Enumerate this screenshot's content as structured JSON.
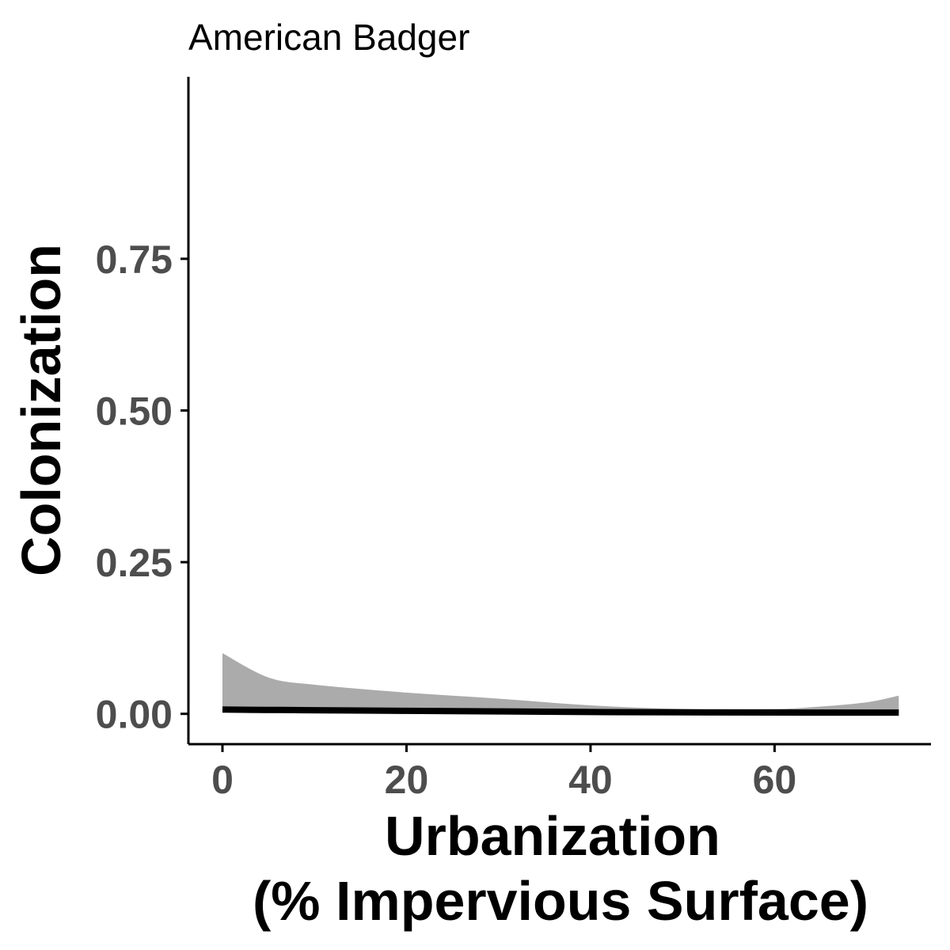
{
  "chart_data": {
    "type": "area",
    "title": "American Badger",
    "xlabel": [
      "Urbanization",
      "(% Impervious Surface)"
    ],
    "ylabel": "Colonization",
    "xlim": [
      -3.7,
      77
    ],
    "ylim": [
      -0.05,
      1.05
    ],
    "x_ticks": [
      0,
      20,
      40,
      60
    ],
    "x_tick_labels": [
      "0",
      "20",
      "40",
      "60"
    ],
    "y_ticks": [
      0,
      0.25,
      0.5,
      0.75
    ],
    "y_tick_labels": [
      "0.00",
      "0.25",
      "0.50",
      "0.75"
    ],
    "grid": false,
    "legend": "none",
    "colors": {
      "ribbon": "#ababab",
      "line": "#000000",
      "axis": "#000000",
      "tick_label": "#4d4d4d"
    },
    "series": [
      {
        "x": [
          0,
          5,
          10,
          20,
          30,
          40,
          50,
          60,
          65,
          70,
          73.5
        ],
        "estimate": [
          0.007,
          0.0065,
          0.006,
          0.005,
          0.004,
          0.003,
          0.0025,
          0.0022,
          0.002,
          0.002,
          0.002
        ],
        "upper": [
          0.1,
          0.06,
          0.048,
          0.035,
          0.025,
          0.014,
          0.008,
          0.008,
          0.012,
          0.019,
          0.03
        ],
        "lower": [
          0.002,
          0.001,
          0.0005,
          0,
          0,
          0,
          0,
          0,
          0,
          0,
          0
        ]
      }
    ]
  }
}
